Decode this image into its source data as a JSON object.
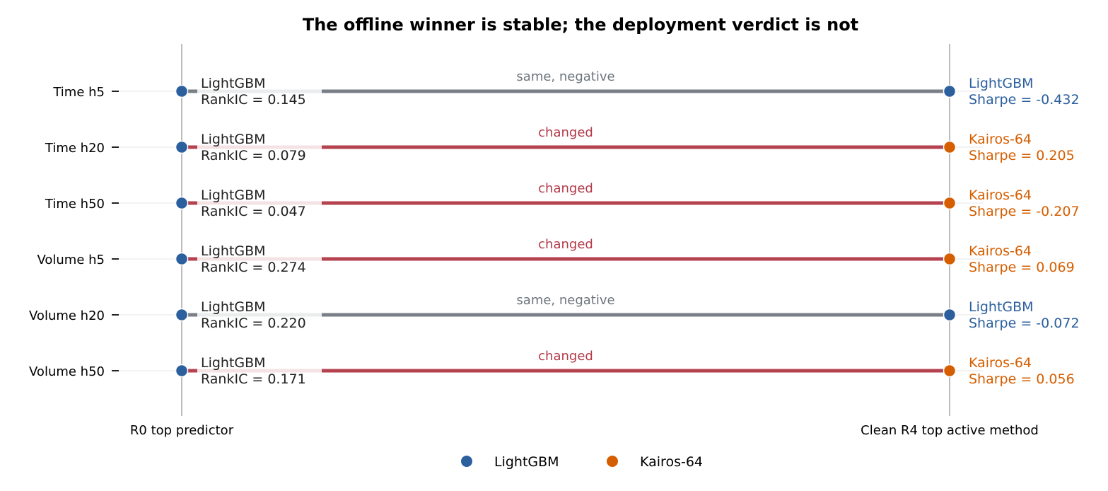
{
  "chart_data": {
    "type": "dumbbell",
    "title": "The offline winner is stable; the deployment verdict is not",
    "left_axis_label": "R0 top predictor",
    "right_axis_label": "Clean R4 top active method",
    "colors": {
      "LightGBM": "#2c5f9e",
      "Kairos-64": "#d55e00",
      "changed": "#b5434f",
      "same, negative": "#7a7f87",
      "changed_text": "#b23a48",
      "same_text": "#6c757d",
      "left_text": "#222222"
    },
    "legend": [
      {
        "label": "LightGBM",
        "color": "#2c5f9e"
      },
      {
        "label": "Kairos-64",
        "color": "#d55e00"
      }
    ],
    "rows": [
      {
        "label": "Time h5",
        "left_model": "LightGBM",
        "left_metric": "RankIC = 0.145",
        "status": "same, negative",
        "right_model": "LightGBM",
        "right_metric": "Sharpe = -0.432"
      },
      {
        "label": "Time h20",
        "left_model": "LightGBM",
        "left_metric": "RankIC = 0.079",
        "status": "changed",
        "right_model": "Kairos-64",
        "right_metric": "Sharpe = 0.205"
      },
      {
        "label": "Time h50",
        "left_model": "LightGBM",
        "left_metric": "RankIC = 0.047",
        "status": "changed",
        "right_model": "Kairos-64",
        "right_metric": "Sharpe = -0.207"
      },
      {
        "label": "Volume h5",
        "left_model": "LightGBM",
        "left_metric": "RankIC = 0.274",
        "status": "changed",
        "right_model": "Kairos-64",
        "right_metric": "Sharpe = 0.069"
      },
      {
        "label": "Volume h20",
        "left_model": "LightGBM",
        "left_metric": "RankIC = 0.220",
        "status": "same, negative",
        "right_model": "LightGBM",
        "right_metric": "Sharpe = -0.072"
      },
      {
        "label": "Volume h50",
        "left_model": "LightGBM",
        "left_metric": "RankIC = 0.171",
        "status": "changed",
        "right_model": "Kairos-64",
        "right_metric": "Sharpe = 0.056"
      }
    ]
  }
}
